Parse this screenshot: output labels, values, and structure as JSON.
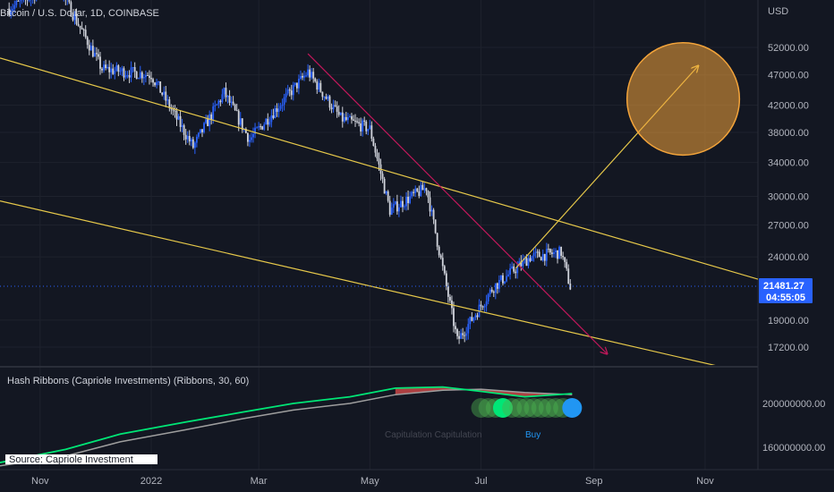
{
  "header": {
    "symbol_title": "Bitcoin / U.S. Dollar, 1D, COINBASE"
  },
  "price_axis": {
    "currency": "USD",
    "ticks": [
      "52000.00",
      "47000.00",
      "42000.00",
      "38000.00",
      "34000.00",
      "30000.00",
      "27000.00",
      "24000.00",
      "19000.00",
      "17200.00"
    ]
  },
  "last_price": {
    "value": "21481.27",
    "countdown": "04:55:05",
    "color": "#2962ff"
  },
  "indicator": {
    "title": "Hash Ribbons (Capriole Investments) (Ribbons, 30, 60)",
    "axis_ticks": [
      "200000000.00",
      "160000000.00"
    ],
    "buy_label": "Buy",
    "faint_label": "Capitulation Capitulation",
    "source_label": "Source: Capriole Investment"
  },
  "time_axis": {
    "ticks": [
      "Nov",
      "2022",
      "Mar",
      "May",
      "Jul",
      "Sep",
      "Nov"
    ]
  },
  "colors": {
    "background": "#131722",
    "candle_up": "#2962ff",
    "candle_down": "#d1d4dc",
    "channel": "#e6c84a",
    "downtrend": "#c2185b",
    "target_circle": "#f2a33a",
    "ribbon_green": "#00e676",
    "ribbon_gray": "#9e9e9e",
    "ribbon_red": "#ef5350",
    "buy_dot": "#2196f3"
  },
  "chart_data": {
    "type": "candlestick",
    "symbol": "BTC/USD",
    "exchange": "COINBASE",
    "interval": "1D",
    "y_scale": "log",
    "x_range": [
      "2021-10-10",
      "2022-11-30"
    ],
    "ylim": [
      15500,
      62000
    ],
    "series": [
      {
        "name": "price",
        "x": [
          "2021-10-15",
          "2021-11-10",
          "2021-12-05",
          "2022-01-01",
          "2022-01-24",
          "2022-02-10",
          "2022-02-24",
          "2022-03-28",
          "2022-04-15",
          "2022-05-01",
          "2022-05-12",
          "2022-06-01",
          "2022-06-18",
          "2022-07-08",
          "2022-07-28",
          "2022-08-14",
          "2022-08-19"
        ],
        "values": [
          60000,
          66000,
          48000,
          47000,
          36000,
          44000,
          37000,
          47500,
          40000,
          38500,
          28500,
          31000,
          17600,
          21500,
          24000,
          24400,
          21481
        ]
      }
    ],
    "trendlines": [
      {
        "name": "channel-upper",
        "from": {
          "x": "2021-10-10",
          "y": 50000
        },
        "to": {
          "x": "2022-11-30",
          "y": 22100
        }
      },
      {
        "name": "channel-lower",
        "from": {
          "x": "2021-10-10",
          "y": 29500
        },
        "to": {
          "x": "2022-11-30",
          "y": 15500
        }
      },
      {
        "name": "downtrend",
        "from": {
          "x": "2022-03-28",
          "y": 50800
        },
        "to": {
          "x": "2022-09-08",
          "y": 16800
        }
      },
      {
        "name": "projection-arrow",
        "from": {
          "x": "2022-07-20",
          "y": 23000
        },
        "to": {
          "x": "2022-10-28",
          "y": 48500
        }
      }
    ],
    "target_zone": {
      "center": {
        "x": "2022-10-20",
        "y": 43000
      },
      "low": 35000,
      "high": 53000
    },
    "last_price": 21481.27,
    "indicator": {
      "name": "Hash Ribbons",
      "ylim": [
        140000000,
        230000000
      ],
      "x": [
        "2021-10-10",
        "2021-11-15",
        "2021-12-15",
        "2022-01-20",
        "2022-02-20",
        "2022-03-20",
        "2022-04-20",
        "2022-05-15",
        "2022-06-10",
        "2022-07-01",
        "2022-07-25",
        "2022-08-20"
      ],
      "series": [
        {
          "values": [
            146000000,
            158000000,
            172000000,
            183000000,
            192000000,
            200000000,
            206000000,
            214000000,
            215000000,
            211000000,
            206000000,
            209000000
          ]
        },
        {
          "values": [
            143000000,
            152000000,
            165000000,
            176000000,
            186000000,
            194000000,
            200000000,
            208000000,
            212000000,
            213000000,
            210000000,
            208000000
          ]
        }
      ],
      "signal_dates": [
        "2022-07-01",
        "2022-07-05",
        "2022-07-09",
        "2022-07-13",
        "2022-07-18",
        "2022-07-22",
        "2022-07-26",
        "2022-07-30",
        "2022-08-03",
        "2022-08-07",
        "2022-08-11",
        "2022-08-15",
        "2022-08-20"
      ],
      "buy_date": "2022-08-20"
    }
  }
}
